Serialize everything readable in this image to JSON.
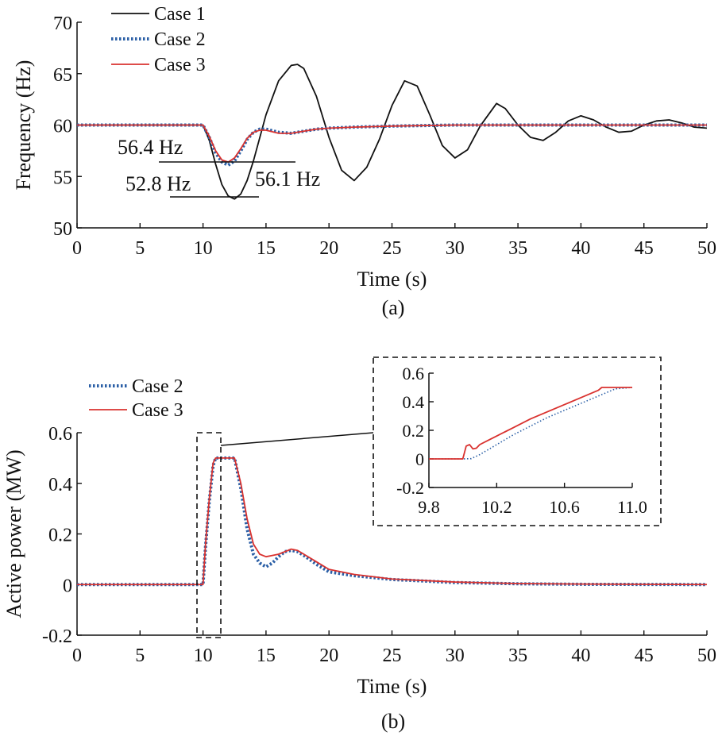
{
  "colors": {
    "case1": "#111111",
    "case2": "#2b5fa6",
    "case3": "#d9322f",
    "axis": "#111111"
  },
  "chart_data": [
    {
      "type": "line",
      "panel_label": "(a)",
      "xlabel": "Time (s)",
      "ylabel": "Frequency (Hz)",
      "xlim": [
        0,
        50
      ],
      "ylim": [
        50,
        70
      ],
      "xticks": [
        "0",
        "5",
        "10",
        "15",
        "20",
        "25",
        "30",
        "35",
        "40",
        "45",
        "50"
      ],
      "yticks": [
        "50",
        "55",
        "60",
        "65",
        "70"
      ],
      "grid": false,
      "legend_position": "top-left",
      "annotations": [
        "56.4 Hz",
        "52.8 Hz",
        "56.1 Hz"
      ],
      "series": [
        {
          "name": "Case 1",
          "style": "solid",
          "x": [
            0,
            10,
            10.5,
            11,
            11.5,
            12,
            12.5,
            13,
            13.5,
            14,
            15,
            16,
            17,
            17.5,
            18,
            19,
            20,
            21,
            22,
            23,
            24,
            25,
            26,
            27,
            28,
            29,
            30,
            31,
            32,
            33.3,
            34,
            35,
            36,
            37,
            38,
            39,
            40,
            41,
            42,
            43,
            44,
            45,
            46,
            47,
            48,
            49,
            50
          ],
          "y": [
            60,
            60,
            58.5,
            56.2,
            54.2,
            53.1,
            52.8,
            53.3,
            54.6,
            56.5,
            61.0,
            64.3,
            65.8,
            65.9,
            65.5,
            62.8,
            58.8,
            55.6,
            54.6,
            55.9,
            58.6,
            61.9,
            64.3,
            63.8,
            61.0,
            58.0,
            56.8,
            57.6,
            59.9,
            62.1,
            61.6,
            60.0,
            58.8,
            58.5,
            59.3,
            60.4,
            60.9,
            60.5,
            59.8,
            59.3,
            59.4,
            60.0,
            60.4,
            60.5,
            60.2,
            59.8,
            59.7
          ]
        },
        {
          "name": "Case 2",
          "style": "dotted",
          "x": [
            0,
            10,
            10.5,
            11,
            11.5,
            12,
            12.5,
            13,
            13.5,
            14,
            14.5,
            15,
            16,
            17,
            18,
            19,
            20,
            22,
            25,
            30,
            35,
            40,
            45,
            50
          ],
          "y": [
            60,
            60,
            58.8,
            57.3,
            56.4,
            56.1,
            56.5,
            57.5,
            58.6,
            59.3,
            59.6,
            59.6,
            59.3,
            59.2,
            59.4,
            59.6,
            59.7,
            59.8,
            59.9,
            60,
            60,
            60,
            60,
            60
          ]
        },
        {
          "name": "Case 3",
          "style": "solid",
          "x": [
            0,
            10,
            10.5,
            11,
            11.5,
            12,
            12.5,
            13,
            13.5,
            14,
            14.5,
            15,
            16,
            17,
            18,
            19,
            20,
            22,
            25,
            30,
            35,
            40,
            45,
            50
          ],
          "y": [
            60,
            60,
            58.9,
            57.5,
            56.6,
            56.4,
            56.8,
            57.7,
            58.7,
            59.3,
            59.5,
            59.5,
            59.2,
            59.2,
            59.4,
            59.6,
            59.7,
            59.8,
            59.9,
            60,
            60,
            60,
            60,
            60
          ]
        }
      ]
    },
    {
      "type": "line",
      "panel_label": "(b)",
      "xlabel": "Time (s)",
      "ylabel": "Active power (MW)",
      "xlim": [
        0,
        50
      ],
      "ylim": [
        -0.2,
        0.6
      ],
      "xticks": [
        "0",
        "5",
        "10",
        "15",
        "20",
        "25",
        "30",
        "35",
        "40",
        "45",
        "50"
      ],
      "yticks": [
        "-0.2",
        "0",
        "0.2",
        "0.4",
        "0.6"
      ],
      "grid": false,
      "legend_position": "top-left",
      "series": [
        {
          "name": "Case 2",
          "style": "dotted",
          "x": [
            0,
            10,
            10.2,
            10.5,
            10.8,
            11,
            12,
            12.5,
            13,
            13.5,
            14,
            14.5,
            15,
            15.5,
            16,
            16.5,
            17,
            17.5,
            18,
            19,
            20,
            22,
            25,
            30,
            35,
            40,
            50
          ],
          "y": [
            0,
            0,
            0.15,
            0.33,
            0.47,
            0.5,
            0.5,
            0.5,
            0.38,
            0.22,
            0.12,
            0.085,
            0.07,
            0.085,
            0.11,
            0.13,
            0.135,
            0.13,
            0.115,
            0.08,
            0.05,
            0.035,
            0.02,
            0.008,
            0.003,
            0.001,
            0
          ]
        },
        {
          "name": "Case 3",
          "style": "solid",
          "x": [
            0,
            10,
            10.2,
            10.5,
            10.8,
            11,
            12,
            12.5,
            13,
            13.5,
            14,
            14.5,
            15,
            15.5,
            16,
            16.5,
            17,
            17.5,
            18,
            19,
            20,
            22,
            25,
            30,
            35,
            40,
            50
          ],
          "y": [
            0,
            0,
            0.16,
            0.34,
            0.48,
            0.5,
            0.5,
            0.5,
            0.4,
            0.26,
            0.16,
            0.12,
            0.11,
            0.115,
            0.12,
            0.13,
            0.14,
            0.135,
            0.12,
            0.09,
            0.06,
            0.04,
            0.022,
            0.01,
            0.004,
            0.002,
            0
          ]
        }
      ]
    },
    {
      "type": "line",
      "role": "inset",
      "xlim": [
        9.8,
        11.0
      ],
      "ylim": [
        -0.2,
        0.6
      ],
      "xticks": [
        "9.8",
        "10.2",
        "10.6",
        "11.0"
      ],
      "yticks": [
        "-0.2",
        "0",
        "0.2",
        "0.4",
        "0.6"
      ],
      "series": [
        {
          "name": "Case 2",
          "style": "dotted",
          "x": [
            9.8,
            10.0,
            10.05,
            10.1,
            10.2,
            10.3,
            10.4,
            10.5,
            10.6,
            10.7,
            10.8,
            10.9,
            11.0
          ],
          "y": [
            0,
            0,
            0.002,
            0.03,
            0.1,
            0.17,
            0.23,
            0.29,
            0.34,
            0.39,
            0.44,
            0.49,
            0.5
          ]
        },
        {
          "name": "Case 3",
          "style": "solid",
          "x": [
            9.8,
            10.0,
            10.02,
            10.04,
            10.06,
            10.08,
            10.1,
            10.15,
            10.2,
            10.3,
            10.4,
            10.5,
            10.6,
            10.7,
            10.8,
            10.82,
            11.0
          ],
          "y": [
            0,
            0,
            0.09,
            0.1,
            0.07,
            0.075,
            0.1,
            0.13,
            0.16,
            0.22,
            0.28,
            0.33,
            0.38,
            0.43,
            0.48,
            0.5,
            0.5
          ]
        }
      ]
    }
  ]
}
